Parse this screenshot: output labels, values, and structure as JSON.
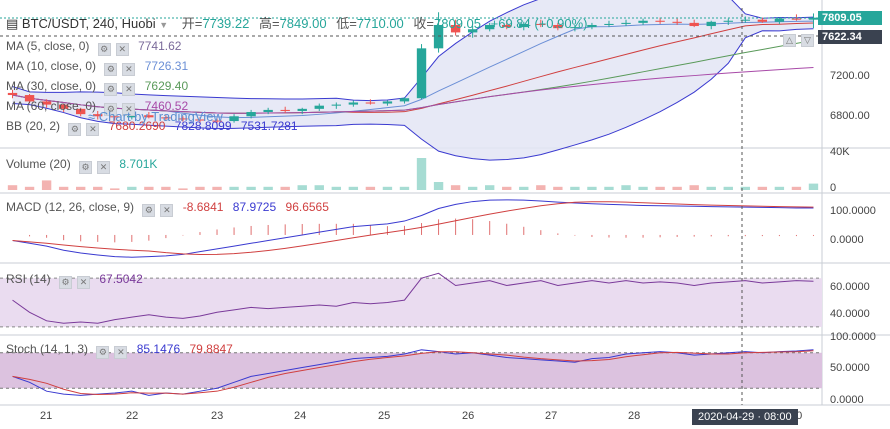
{
  "header": {
    "symbol": "BTC/USDT, 240, Huobi",
    "open_label": "开=",
    "open": "7739.22",
    "high_label": "高=",
    "high": "7849.00",
    "low_label": "低=",
    "low": "7710.00",
    "close_label": "收=",
    "close": "7809.05",
    "change": "+69.84 (+0.90%)"
  },
  "watermark": "Chart by TradingView",
  "indicators": {
    "ma5": {
      "label": "MA (5, close, 0)",
      "value": "7741.62"
    },
    "ma10": {
      "label": "MA (10, close, 0)",
      "value": "7726.31"
    },
    "ma30": {
      "label": "MA (30, close, 0)",
      "value": "7629.40"
    },
    "ma60": {
      "label": "MA (60, close, 0)",
      "value": "7460.52"
    },
    "bb": {
      "label": "BB (20, 2)",
      "v1": "7680.2690",
      "v2": "7828.8099",
      "v3": "7531.7281"
    },
    "volume": {
      "label": "Volume (20)",
      "value": "8.701K"
    },
    "macd": {
      "label": "MACD (12, 26, close, 9)",
      "v1": "-8.6841",
      "v2": "87.9725",
      "v3": "96.6565"
    },
    "rsi": {
      "label": "RSI (14)",
      "value": "67.5042"
    },
    "stoch": {
      "label": "Stoch (14, 1, 3)",
      "v1": "85.1476",
      "v2": "79.8847"
    }
  },
  "price_tags": {
    "last": "7809.05",
    "ma": "7622.34"
  },
  "axis": {
    "price_ticks": [
      "7200.00",
      "6800.00"
    ],
    "volume_ticks": [
      "40K",
      "0"
    ],
    "macd_ticks": [
      "100.0000",
      "0.0000"
    ],
    "rsi_ticks": [
      "60.0000",
      "40.0000"
    ],
    "stoch_ticks": [
      "100.0000",
      "50.0000",
      "0.0000"
    ],
    "dates": [
      "21",
      "22",
      "23",
      "24",
      "25",
      "26",
      "27",
      "28",
      "30"
    ],
    "crosshair_time": "2020-04-29 · 08:00"
  },
  "colors": {
    "up": "#26a69a",
    "down": "#ef5350",
    "bb_fill": "#e3e5f5",
    "rsi_fill": "#eadcf0",
    "stoch_fill": "#dcc2df"
  },
  "chart_data": {
    "type": "candlestick",
    "title": "BTC/USDT, 240, Huobi",
    "ylim": [
      6600,
      7900
    ],
    "candles": [
      [
        7100,
        7130,
        7050,
        7080
      ],
      [
        7080,
        7090,
        7000,
        7020
      ],
      [
        7020,
        7040,
        6960,
        6990
      ],
      [
        6990,
        7000,
        6920,
        6950
      ],
      [
        6950,
        6960,
        6880,
        6900
      ],
      [
        6900,
        6930,
        6850,
        6880
      ],
      [
        6880,
        6900,
        6840,
        6870
      ],
      [
        6870,
        6910,
        6850,
        6890
      ],
      [
        6890,
        6920,
        6860,
        6870
      ],
      [
        6870,
        6890,
        6840,
        6860
      ],
      [
        6860,
        6880,
        6830,
        6850
      ],
      [
        6850,
        6870,
        6820,
        6840
      ],
      [
        6840,
        6860,
        6810,
        6835
      ],
      [
        6835,
        6900,
        6820,
        6880
      ],
      [
        6880,
        6940,
        6860,
        6920
      ],
      [
        6920,
        6960,
        6900,
        6940
      ],
      [
        6940,
        6970,
        6910,
        6930
      ],
      [
        6930,
        6960,
        6900,
        6950
      ],
      [
        6950,
        7000,
        6930,
        6980
      ],
      [
        6980,
        7010,
        6950,
        6990
      ],
      [
        6990,
        7030,
        6970,
        7010
      ],
      [
        7010,
        7040,
        6990,
        7000
      ],
      [
        7000,
        7030,
        6980,
        7020
      ],
      [
        7020,
        7060,
        7000,
        7050
      ],
      [
        7050,
        7560,
        7040,
        7520
      ],
      [
        7520,
        7860,
        7480,
        7740
      ],
      [
        7740,
        7790,
        7640,
        7670
      ],
      [
        7670,
        7730,
        7620,
        7700
      ],
      [
        7700,
        7760,
        7680,
        7740
      ],
      [
        7740,
        7780,
        7700,
        7720
      ],
      [
        7720,
        7770,
        7690,
        7750
      ],
      [
        7750,
        7790,
        7720,
        7740
      ],
      [
        7740,
        7760,
        7690,
        7710
      ],
      [
        7710,
        7740,
        7680,
        7720
      ],
      [
        7720,
        7760,
        7700,
        7740
      ],
      [
        7740,
        7780,
        7720,
        7750
      ],
      [
        7750,
        7790,
        7730,
        7760
      ],
      [
        7760,
        7800,
        7740,
        7780
      ],
      [
        7780,
        7810,
        7750,
        7770
      ],
      [
        7770,
        7800,
        7740,
        7760
      ],
      [
        7760,
        7790,
        7720,
        7730
      ],
      [
        7730,
        7780,
        7700,
        7770
      ],
      [
        7770,
        7800,
        7740,
        7780
      ],
      [
        7780,
        7820,
        7760,
        7790
      ],
      [
        7790,
        7810,
        7760,
        7770
      ],
      [
        7770,
        7810,
        7750,
        7800
      ],
      [
        7800,
        7840,
        7780,
        7790
      ],
      [
        7790,
        7849,
        7710,
        7809
      ]
    ],
    "volume": [
      3,
      2,
      6,
      2,
      2,
      2,
      1,
      2,
      2,
      2,
      1,
      2,
      2,
      2,
      2,
      2,
      2,
      3,
      3,
      2,
      2,
      2,
      2,
      2,
      20,
      5,
      3,
      2,
      3,
      2,
      2,
      3,
      2,
      2,
      2,
      2,
      3,
      2,
      2,
      2,
      3,
      2,
      2,
      2,
      2,
      2,
      2,
      4
    ],
    "macd": [
      -20,
      -30,
      -40,
      -55,
      -65,
      -72,
      -78,
      -80,
      -78,
      -75,
      -70,
      -60,
      -50,
      -40,
      -30,
      -20,
      -10,
      0,
      10,
      20,
      30,
      35,
      40,
      50,
      70,
      95,
      110,
      120,
      125,
      126,
      125,
      122,
      118,
      115,
      112,
      110,
      108,
      106,
      105,
      104,
      103,
      102,
      101,
      100,
      99,
      98,
      97,
      96.66
    ],
    "rsi": [
      52,
      42,
      35,
      33,
      34,
      33,
      36,
      38,
      40,
      38,
      37,
      39,
      42,
      44,
      46,
      45,
      46,
      47,
      48,
      47,
      50,
      49,
      50,
      52,
      70,
      74,
      64,
      66,
      68,
      64,
      66,
      68,
      64,
      66,
      68,
      66,
      68,
      66,
      67,
      66,
      64,
      66,
      67,
      68,
      66,
      67,
      68,
      67.5
    ],
    "stoch": [
      40,
      30,
      15,
      10,
      8,
      10,
      12,
      15,
      8,
      12,
      10,
      15,
      20,
      30,
      40,
      45,
      50,
      55,
      60,
      65,
      70,
      72,
      74,
      78,
      85,
      82,
      78,
      80,
      76,
      72,
      70,
      68,
      66,
      64,
      70,
      72,
      78,
      80,
      82,
      80,
      76,
      78,
      80,
      82,
      80,
      82,
      83,
      85.15
    ]
  }
}
